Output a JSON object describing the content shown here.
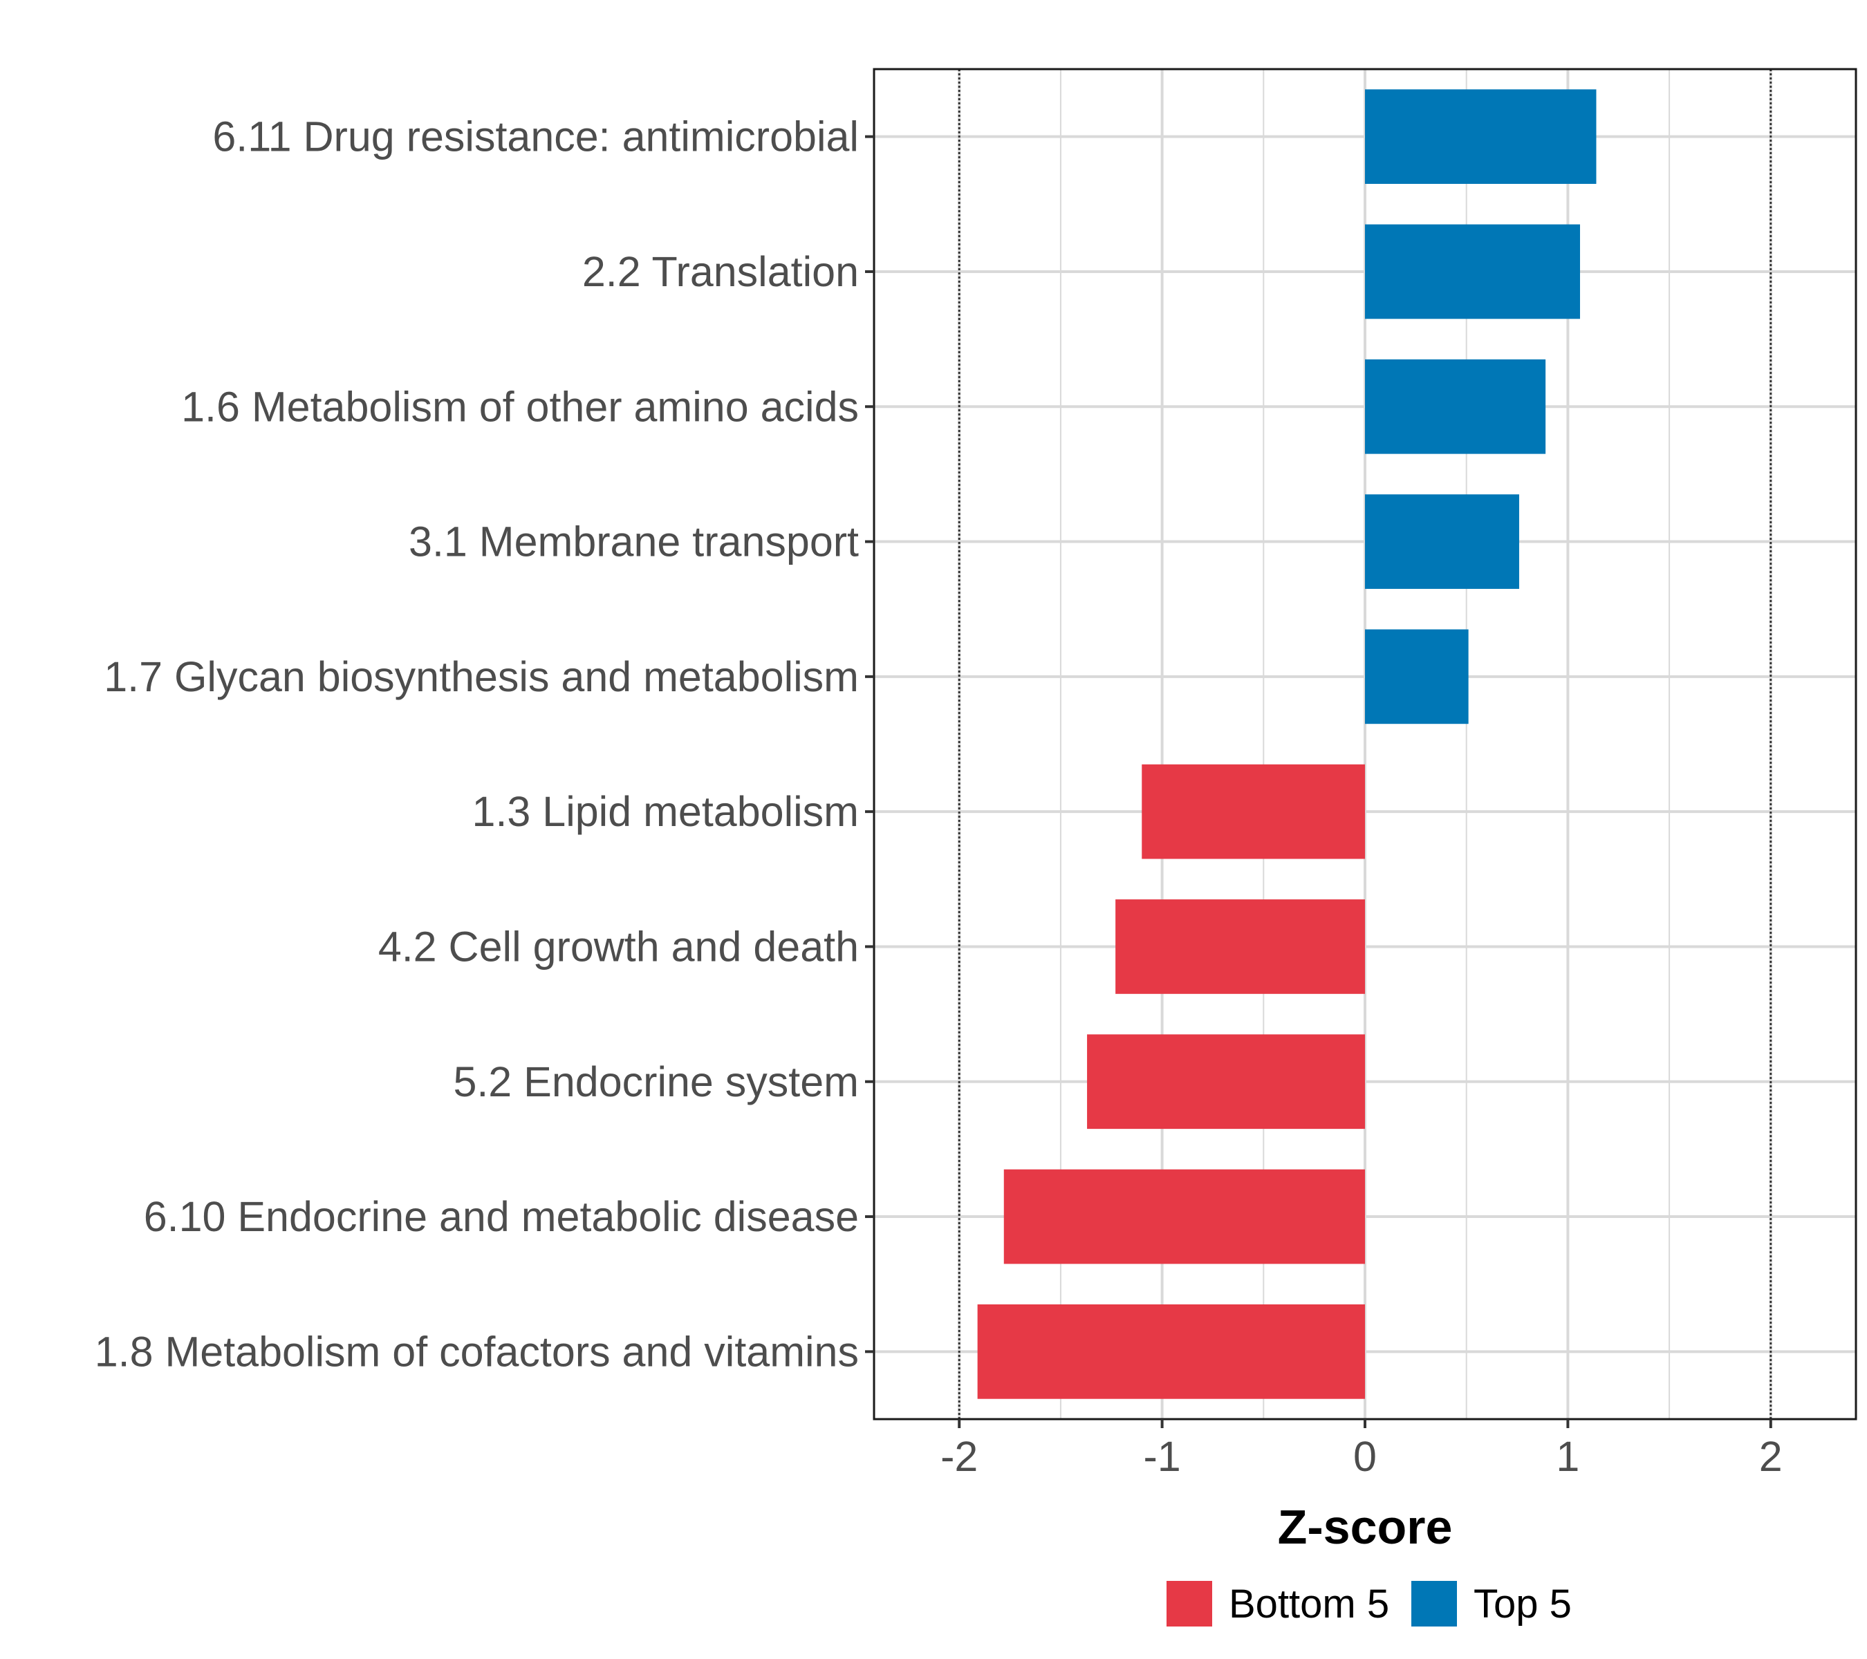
{
  "chart_data": {
    "type": "bar",
    "orientation": "horizontal",
    "title": "",
    "xlabel": "Z-score",
    "ylabel": "",
    "xlim": [
      -2.42,
      2.42
    ],
    "xticks": [
      -2,
      -1,
      0,
      1,
      2
    ],
    "xtick_labels": [
      "-2",
      "-1",
      "0",
      "1",
      "2"
    ],
    "reference_lines": [
      -2,
      2
    ],
    "grid": true,
    "legend_position": "bottom",
    "categories": [
      "6.11 Drug resistance: antimicrobial",
      "2.2 Translation",
      "1.6 Metabolism of other amino acids",
      "3.1 Membrane transport",
      "1.7 Glycan biosynthesis and metabolism",
      "1.3 Lipid metabolism",
      "4.2 Cell growth and death",
      "5.2 Endocrine system",
      "6.10 Endocrine and metabolic disease",
      "1.8 Metabolism of cofactors and vitamins"
    ],
    "values": [
      1.14,
      1.06,
      0.89,
      0.76,
      0.51,
      -1.1,
      -1.23,
      -1.37,
      -1.78,
      -1.91
    ],
    "groups": [
      "Top 5",
      "Top 5",
      "Top 5",
      "Top 5",
      "Top 5",
      "Bottom 5",
      "Bottom 5",
      "Bottom 5",
      "Bottom 5",
      "Bottom 5"
    ],
    "legend": [
      {
        "name": "Bottom 5",
        "color": "#e63946"
      },
      {
        "name": "Top 5",
        "color": "#0077b6"
      }
    ]
  }
}
